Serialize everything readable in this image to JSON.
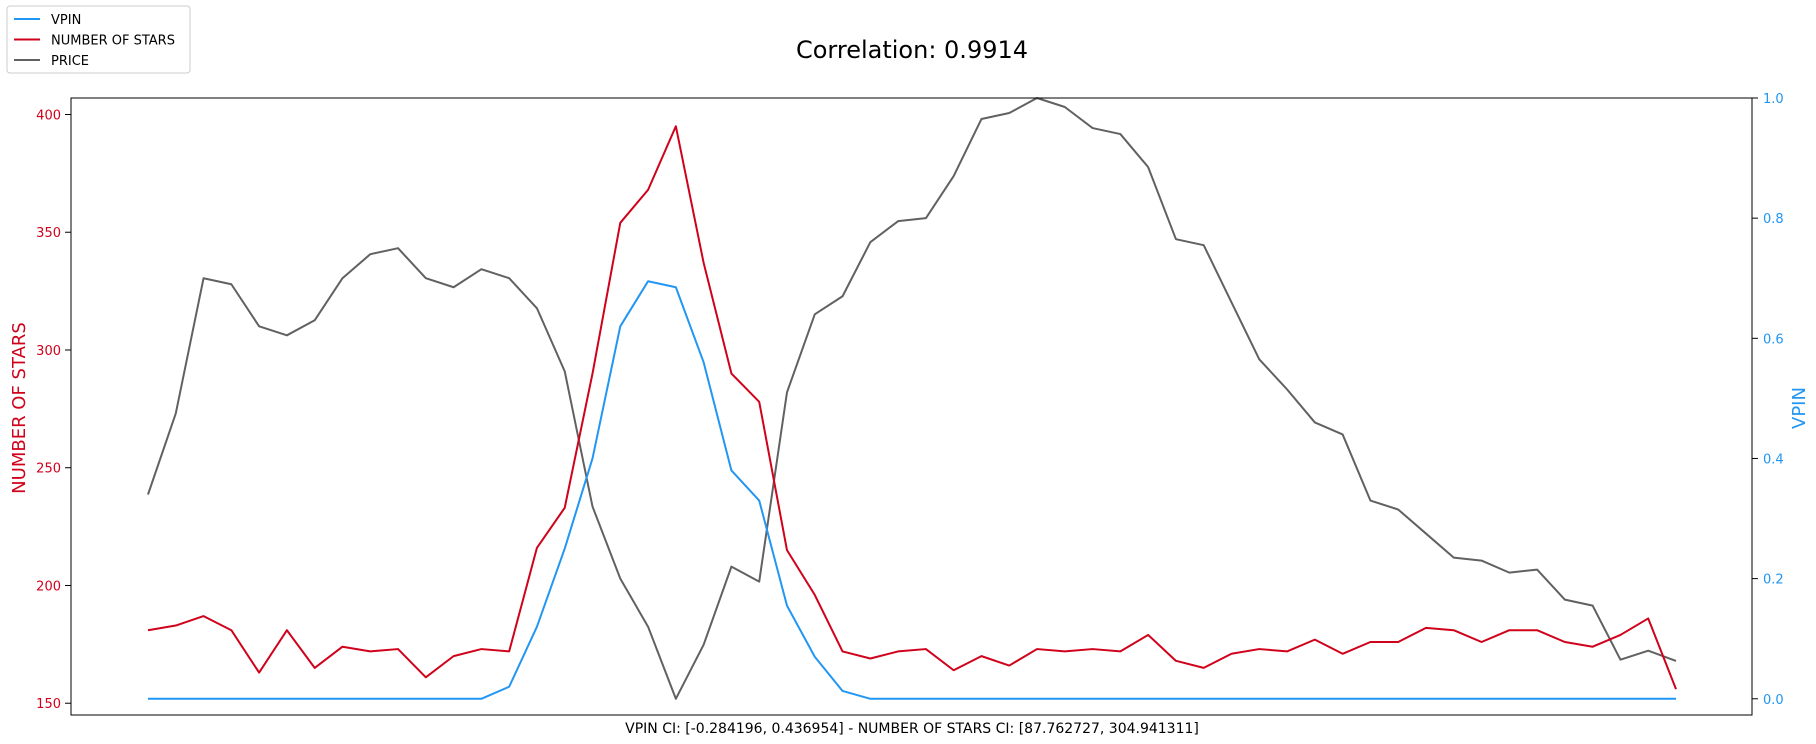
{
  "chart_data": {
    "type": "line",
    "title": "Correlation: 0.9914",
    "xlabel": "VPIN CI: [-0.284196, 0.436954] - NUMBER OF STARS CI: [87.762727, 304.941311]",
    "ylabel_left": "NUMBER OF STARS",
    "ylabel_right": "VPIN",
    "x": [
      0,
      1,
      2,
      3,
      4,
      5,
      6,
      7,
      8,
      9,
      10,
      11,
      12,
      13,
      14,
      15,
      16,
      17,
      18,
      19,
      20,
      21,
      22,
      23,
      24,
      25,
      26,
      27,
      28,
      29,
      30,
      31,
      32,
      33,
      34,
      35,
      36,
      37,
      38,
      39,
      40,
      41,
      42,
      43,
      44,
      45,
      46,
      47,
      48,
      49,
      50,
      51,
      52,
      53,
      54,
      55
    ],
    "ylim_left": [
      145,
      407
    ],
    "ylim_right": [
      -0.027,
      1.0
    ],
    "yticks_left": [
      150,
      200,
      250,
      300,
      350,
      400
    ],
    "yticks_right": [
      0.0,
      0.2,
      0.4,
      0.6,
      0.8,
      1.0
    ],
    "ytick_labels_left": [
      "150",
      "200",
      "250",
      "300",
      "350",
      "400"
    ],
    "ytick_labels_right": [
      "0.0",
      "0.2",
      "0.4",
      "0.6",
      "0.8",
      "1.0"
    ],
    "grid": false,
    "legend_position": "top-left",
    "colors": {
      "vpin": "#2196F3",
      "stars": "#D0021B",
      "price": "#616161"
    },
    "series": [
      {
        "name": "VPIN",
        "axis": "right",
        "values": [
          0,
          0,
          0,
          0,
          0,
          0,
          0,
          0,
          0,
          0,
          0,
          0,
          0,
          0.02,
          0.12,
          0.25,
          0.4,
          0.62,
          0.695,
          0.685,
          0.56,
          0.38,
          0.33,
          0.155,
          0.07,
          0.013,
          0,
          0,
          0,
          0,
          0,
          0,
          0,
          0,
          0,
          0,
          0,
          0,
          0,
          0,
          0,
          0,
          0,
          0,
          0,
          0,
          0,
          0,
          0,
          0,
          0,
          0,
          0,
          0,
          0,
          0
        ]
      },
      {
        "name": "NUMBER OF STARS",
        "axis": "left",
        "values": [
          181,
          183,
          187,
          181,
          163,
          181,
          165,
          174,
          172,
          173,
          161,
          170,
          173,
          172,
          216,
          233,
          290,
          354,
          368,
          395,
          337,
          290,
          278,
          215,
          196,
          172,
          169,
          172,
          173,
          164,
          170,
          166,
          173,
          172,
          173,
          172,
          179,
          168,
          165,
          171,
          173,
          172,
          177,
          171,
          176,
          176,
          182,
          181,
          176,
          181,
          181,
          176,
          174,
          179,
          186,
          156
        ]
      },
      {
        "name": "PRICE",
        "axis": "right",
        "values": [
          0.34,
          0.475,
          0.7,
          0.69,
          0.62,
          0.605,
          0.63,
          0.7,
          0.74,
          0.75,
          0.7,
          0.685,
          0.715,
          0.7,
          0.65,
          0.545,
          0.32,
          0.2,
          0.12,
          0.0,
          0.09,
          0.22,
          0.195,
          0.51,
          0.64,
          0.67,
          0.76,
          0.795,
          0.8,
          0.87,
          0.965,
          0.975,
          1.0,
          0.985,
          0.95,
          0.94,
          0.885,
          0.765,
          0.755,
          0.66,
          0.565,
          0.515,
          0.46,
          0.44,
          0.33,
          0.315,
          0.275,
          0.235,
          0.23,
          0.21,
          0.215,
          0.165,
          0.155,
          0.065,
          0.08,
          0.063
        ]
      }
    ]
  }
}
